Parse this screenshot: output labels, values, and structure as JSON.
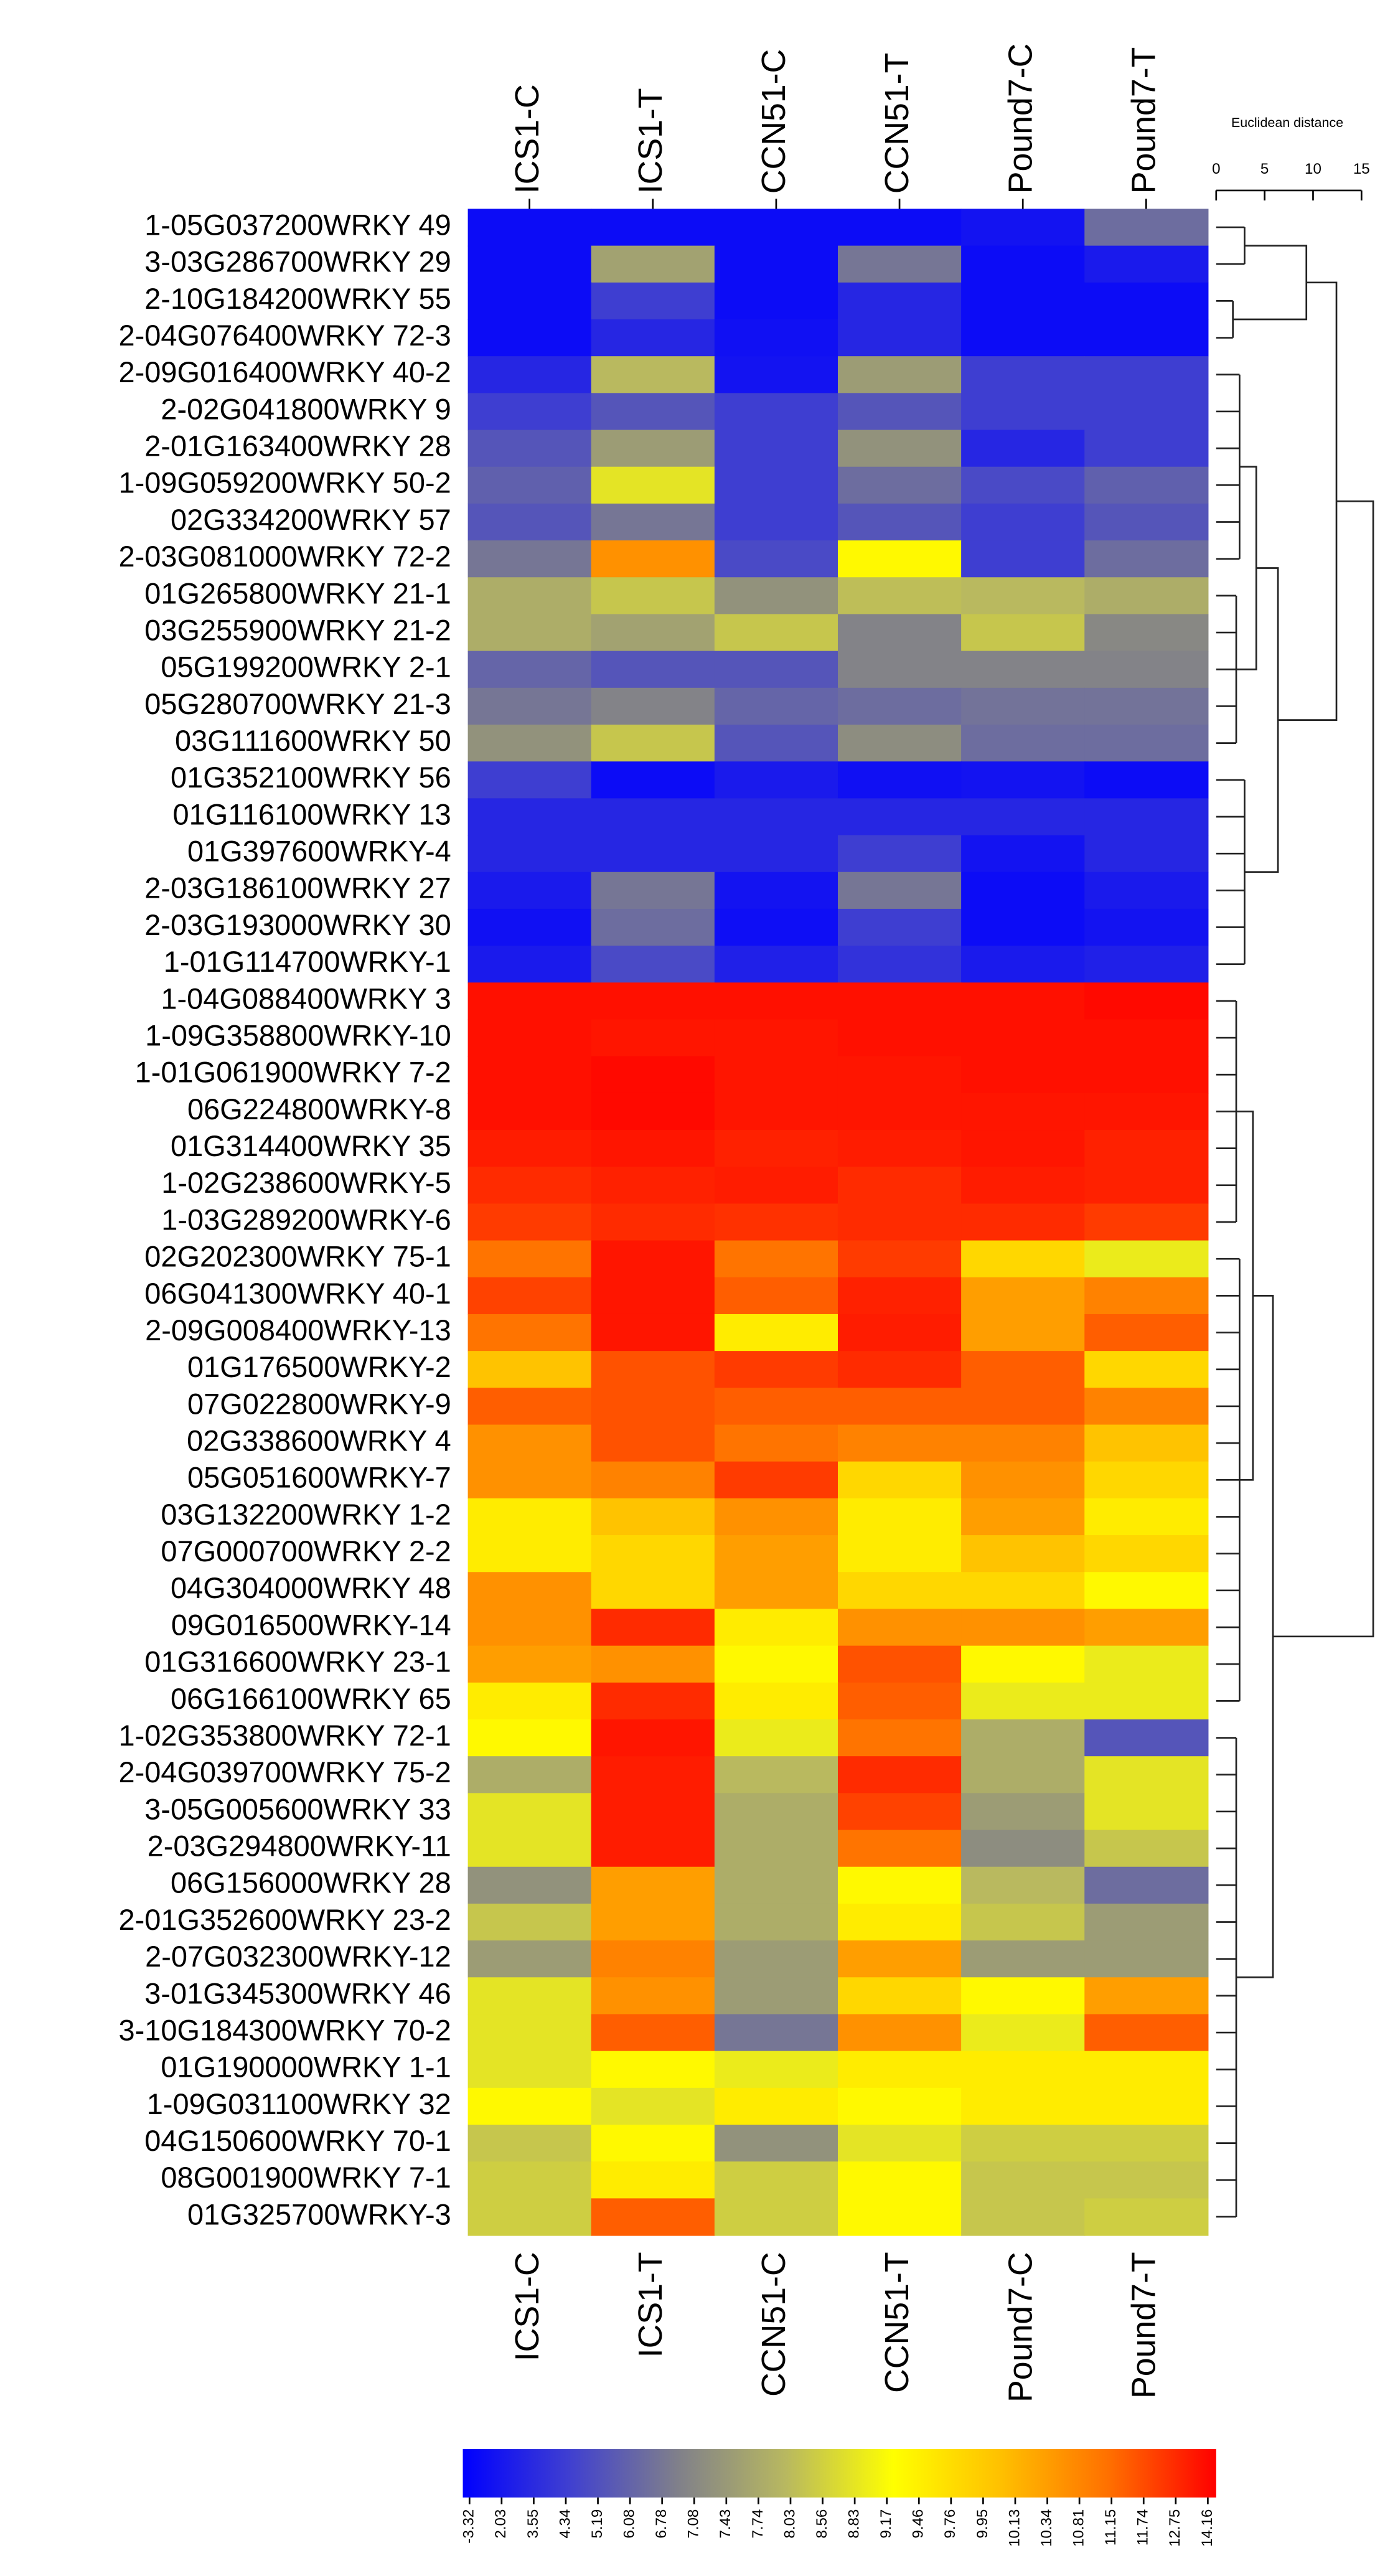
{
  "chart_data": {
    "type": "heatmap",
    "columns": [
      "ICS1-C",
      "ICS1-T",
      "CCN51-C",
      "CCN51-T",
      "Pound7-C",
      "Pound7-T"
    ],
    "rows": [
      "1-05G037200WRKY 49",
      "3-03G286700WRKY 29",
      "2-10G184200WRKY 55",
      "2-04G076400WRKY 72-3",
      "2-09G016400WRKY 40-2",
      "2-02G041800WRKY 9",
      "2-01G163400WRKY 28",
      "1-09G059200WRKY 50-2",
      "02G334200WRKY 57",
      "2-03G081000WRKY 72-2",
      "01G265800WRKY 21-1",
      "03G255900WRKY 21-2",
      "05G199200WRKY 2-1",
      "05G280700WRKY 21-3",
      "03G111600WRKY 50",
      "01G352100WRKY 56",
      "01G116100WRKY 13",
      "01G397600WRKY-4",
      "2-03G186100WRKY 27",
      "2-03G193000WRKY 30",
      "1-01G114700WRKY-1",
      "1-04G088400WRKY 3",
      "1-09G358800WRKY-10",
      "1-01G061900WRKY 7-2",
      "06G224800WRKY-8",
      "01G314400WRKY 35",
      "1-02G238600WRKY-5",
      "1-03G289200WRKY-6",
      "02G202300WRKY 75-1",
      "06G041300WRKY 40-1",
      "2-09G008400WRKY-13",
      "01G176500WRKY-2",
      "07G022800WRKY-9",
      "02G338600WRKY 4",
      "05G051600WRKY-7",
      "03G132200WRKY 1-2",
      "07G000700WRKY 2-2",
      "04G304000WRKY 48",
      "09G016500WRKY-14",
      "01G316600WRKY 23-1",
      "06G166100WRKY 65",
      "1-02G353800WRKY 72-1",
      "2-04G039700WRKY 75-2",
      "3-05G005600WRKY 33",
      "2-03G294800WRKY-11",
      "06G156000WRKY 28",
      "2-01G352600WRKY 23-2",
      "2-07G032300WRKY-12",
      "3-01G345300WRKY 46",
      "3-10G184300WRKY 70-2",
      "01G190000WRKY 1-1",
      "1-09G031100WRKY 32",
      "04G150600WRKY 70-1",
      "08G001900WRKY 7-1",
      "01G325700WRKY-3"
    ],
    "values": [
      [
        0,
        0,
        0,
        0,
        2,
        6.5
      ],
      [
        0,
        7.6,
        0,
        6.8,
        0,
        2.5
      ],
      [
        0,
        4.5,
        0,
        3.5,
        0,
        0
      ],
      [
        0,
        3.5,
        1,
        3.5,
        0,
        0
      ],
      [
        3.5,
        8,
        2,
        7.5,
        4.5,
        4.5
      ],
      [
        4.5,
        5.5,
        4.5,
        5.5,
        4.5,
        4.5
      ],
      [
        5.5,
        7.5,
        4.5,
        7.3,
        3.5,
        4.5
      ],
      [
        6,
        8.8,
        4.5,
        6.5,
        5,
        6
      ],
      [
        5.5,
        6.8,
        4.5,
        5.5,
        4.5,
        5.5
      ],
      [
        6.8,
        10.5,
        5,
        9.3,
        4.5,
        6.5
      ],
      [
        7.8,
        8.3,
        7.3,
        8.1,
        8,
        7.8
      ],
      [
        7.8,
        7.6,
        8.3,
        7,
        8.3,
        7.1
      ],
      [
        6.2,
        5.5,
        5.5,
        7,
        7,
        7
      ],
      [
        6.8,
        7,
        6.2,
        6.5,
        6.7,
        6.7
      ],
      [
        7.3,
        8.3,
        5.5,
        7.2,
        6.5,
        6.5
      ],
      [
        4.5,
        0,
        2.5,
        1,
        2,
        0
      ],
      [
        3.5,
        3.5,
        3.5,
        3.5,
        3.5,
        3.5
      ],
      [
        3.5,
        3.5,
        3.5,
        4.5,
        2,
        3.5
      ],
      [
        2.5,
        6.8,
        2,
        6.8,
        0,
        2.5
      ],
      [
        1,
        6.5,
        0.5,
        4.5,
        0,
        2
      ],
      [
        2.5,
        5,
        3,
        4,
        2.5,
        3
      ],
      [
        13.5,
        13.5,
        13.5,
        13.5,
        13.5,
        13.8
      ],
      [
        13.5,
        13.3,
        13.3,
        13.5,
        13.5,
        13.5
      ],
      [
        13.5,
        13.8,
        13.3,
        13.3,
        13.5,
        13.5
      ],
      [
        13.5,
        13.8,
        13.3,
        13.3,
        13.3,
        13.3
      ],
      [
        13,
        13.3,
        12.8,
        13,
        13.3,
        12.8
      ],
      [
        12.5,
        12.8,
        13,
        12.5,
        13,
        12.8
      ],
      [
        12,
        12.5,
        12.3,
        12.5,
        12.5,
        12
      ],
      [
        11,
        13.3,
        11,
        12,
        9.8,
        8.9
      ],
      [
        11.8,
        13.3,
        11.3,
        12.8,
        10.3,
        10.8
      ],
      [
        11,
        13.3,
        9.5,
        13,
        10.3,
        11.3
      ],
      [
        10,
        11.5,
        12,
        12.5,
        11.3,
        9.8
      ],
      [
        11.3,
        11.5,
        11.3,
        11.3,
        11.3,
        10.8
      ],
      [
        10.5,
        11.5,
        11,
        10.8,
        10.8,
        10
      ],
      [
        10.5,
        10.8,
        12,
        9.8,
        10.5,
        9.8
      ],
      [
        9.5,
        10,
        10.5,
        9.5,
        10.3,
        9.5
      ],
      [
        9.5,
        9.8,
        10.3,
        9.5,
        10,
        9.8
      ],
      [
        10.5,
        9.8,
        10.3,
        9.8,
        9.8,
        9.3
      ],
      [
        10.5,
        12.5,
        9.5,
        10.5,
        10.5,
        10.3
      ],
      [
        10.3,
        10.5,
        9.3,
        11.5,
        9.3,
        8.9
      ],
      [
        9.5,
        12.5,
        9.5,
        11.3,
        8.9,
        8.9
      ],
      [
        9.3,
        13.3,
        8.9,
        11,
        7.8,
        5.5
      ],
      [
        7.8,
        13,
        8,
        12.5,
        7.8,
        8.8
      ],
      [
        8.8,
        13,
        7.8,
        11.8,
        7.5,
        8.8
      ],
      [
        8.8,
        13,
        7.8,
        11,
        7.2,
        8.3
      ],
      [
        7.3,
        10.3,
        7.8,
        9.3,
        8,
        6.5
      ],
      [
        8.3,
        10.3,
        7.8,
        9.5,
        8.3,
        7.5
      ],
      [
        7.5,
        10.8,
        7.5,
        10.3,
        7.5,
        7.5
      ],
      [
        8.8,
        10.5,
        7.5,
        9.8,
        9.3,
        10.3
      ],
      [
        8.8,
        11.3,
        6.8,
        10.5,
        8.9,
        11.3
      ],
      [
        8.8,
        9.3,
        8.9,
        9.5,
        9.5,
        9.5
      ],
      [
        9.3,
        8.8,
        9.5,
        9.3,
        9.5,
        9.5
      ],
      [
        8.3,
        9.3,
        7.3,
        8.8,
        8.5,
        8.5
      ],
      [
        8.5,
        9.5,
        8.5,
        9.3,
        8.3,
        8.3
      ],
      [
        8.5,
        11.3,
        8.5,
        9.3,
        8.3,
        8.5
      ]
    ],
    "colorbar_ticks": [
      -3.32,
      2.03,
      3.55,
      4.34,
      5.19,
      6.08,
      6.78,
      7.08,
      7.43,
      7.74,
      8.03,
      8.56,
      8.83,
      9.17,
      9.46,
      9.76,
      9.95,
      10.13,
      10.34,
      10.81,
      11.15,
      11.74,
      12.75,
      14.16
    ],
    "colorscale": [
      "#0000ff",
      "#4040d0",
      "#80808a",
      "#b8b860",
      "#ffff00",
      "#ffc000",
      "#ff7000",
      "#ff0000"
    ],
    "dendrogram_axis": {
      "label": "Euclidean distance",
      "xlim": [
        0,
        15
      ],
      "xticks": [
        0,
        5,
        10,
        15
      ]
    }
  }
}
